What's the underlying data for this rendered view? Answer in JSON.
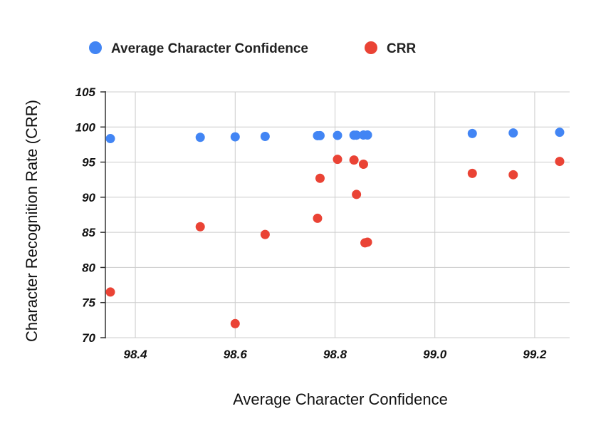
{
  "chart_data": {
    "type": "scatter",
    "title": "",
    "xlabel": "Average Character Confidence",
    "ylabel": "Character Recognition Rate (CRR)",
    "xlim": [
      98.34,
      99.27
    ],
    "ylim": [
      70,
      105
    ],
    "xticks": [
      98.4,
      98.6,
      98.8,
      99.0,
      99.2
    ],
    "xtick_labels": [
      "98.4",
      "98.6",
      "98.8",
      "99.0",
      "99.2"
    ],
    "yticks": [
      70,
      75,
      80,
      85,
      90,
      95,
      100,
      105
    ],
    "ytick_labels": [
      "70",
      "75",
      "80",
      "85",
      "90",
      "95",
      "100",
      "105"
    ],
    "grid": true,
    "legend": {
      "placement": "top-left"
    },
    "series": [
      {
        "name": "Average Character Confidence",
        "color": "#4285f4",
        "x": [
          98.35,
          98.53,
          98.6,
          98.66,
          98.765,
          98.77,
          98.805,
          98.838,
          98.843,
          98.857,
          98.865,
          99.075,
          99.157,
          99.25
        ],
        "y": [
          98.35,
          98.53,
          98.6,
          98.66,
          98.765,
          98.77,
          98.805,
          98.838,
          98.843,
          98.857,
          98.865,
          99.075,
          99.157,
          99.25
        ]
      },
      {
        "name": "CRR",
        "color": "#ea4335",
        "x": [
          98.35,
          98.53,
          98.6,
          98.66,
          98.765,
          98.77,
          98.805,
          98.838,
          98.843,
          98.857,
          98.86,
          98.865,
          99.075,
          99.157,
          99.25
        ],
        "y": [
          76.5,
          85.8,
          72.0,
          84.7,
          87.0,
          92.7,
          95.4,
          95.3,
          90.4,
          94.7,
          83.5,
          83.6,
          93.4,
          93.2,
          95.1
        ]
      }
    ]
  }
}
